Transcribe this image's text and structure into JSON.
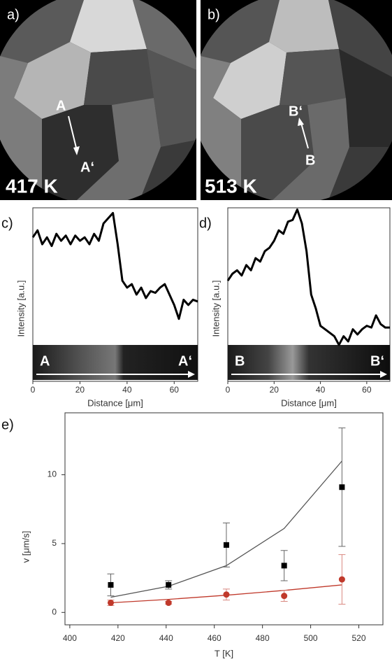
{
  "images": [
    {
      "label": "a)",
      "temperature": "417 K",
      "start": "A",
      "end": "A‘"
    },
    {
      "label": "b)",
      "temperature": "513 K",
      "start": "B",
      "end": "B‘"
    }
  ],
  "chart_data": [
    {
      "type": "profile",
      "label": "c)",
      "x_label": "Distance [μm]",
      "y_label": "Intensity [a.u.]",
      "strip_start": "A",
      "strip_end": "A‘",
      "color": "#000",
      "x": [
        0,
        2,
        4,
        6,
        8,
        10,
        12,
        14,
        16,
        18,
        20,
        22,
        24,
        26,
        28,
        30,
        32,
        34,
        36,
        38,
        40,
        42,
        44,
        46,
        48,
        50,
        52,
        54,
        56,
        58,
        60,
        62,
        64,
        66,
        68,
        70
      ],
      "values": [
        0.83,
        0.87,
        0.79,
        0.83,
        0.78,
        0.85,
        0.81,
        0.84,
        0.79,
        0.84,
        0.81,
        0.83,
        0.79,
        0.85,
        0.81,
        0.91,
        0.94,
        0.97,
        0.79,
        0.58,
        0.54,
        0.56,
        0.5,
        0.54,
        0.48,
        0.52,
        0.51,
        0.54,
        0.56,
        0.5,
        0.44,
        0.36,
        0.47,
        0.44,
        0.47,
        0.46
      ],
      "xlim": [
        0,
        70
      ],
      "ylim": [
        0,
        1
      ],
      "xticks": [
        0,
        20,
        40,
        60
      ]
    },
    {
      "type": "profile",
      "label": "d)",
      "x_label": "Distance [μm]",
      "y_label": "Intensity [a.u.]",
      "strip_start": "B",
      "strip_end": "B‘",
      "color": "#000",
      "x": [
        0,
        2,
        4,
        6,
        8,
        10,
        12,
        14,
        16,
        18,
        20,
        22,
        24,
        26,
        28,
        30,
        32,
        34,
        36,
        38,
        40,
        42,
        44,
        46,
        48,
        50,
        52,
        54,
        56,
        58,
        60,
        62,
        64,
        66,
        68,
        70
      ],
      "values": [
        0.58,
        0.62,
        0.64,
        0.61,
        0.67,
        0.64,
        0.71,
        0.69,
        0.75,
        0.77,
        0.81,
        0.87,
        0.85,
        0.92,
        0.93,
        0.99,
        0.91,
        0.75,
        0.5,
        0.42,
        0.32,
        0.3,
        0.28,
        0.26,
        0.21,
        0.26,
        0.23,
        0.3,
        0.27,
        0.3,
        0.32,
        0.31,
        0.38,
        0.33,
        0.31,
        0.31
      ],
      "xlim": [
        0,
        70
      ],
      "ylim": [
        0,
        1
      ],
      "xticks": [
        0,
        20,
        40,
        60
      ]
    },
    {
      "type": "scatter",
      "label": "e)",
      "x_label": "T [K]",
      "y_label": "v [μm/s]",
      "series": [
        {
          "kind": "line",
          "color": "#555",
          "x": [
            417,
            441,
            465,
            489,
            513
          ],
          "values": [
            1.1,
            1.9,
            3.4,
            6.1,
            11.0
          ]
        },
        {
          "kind": "line",
          "color": "#c0392b",
          "x": [
            417,
            441,
            465,
            489,
            513
          ],
          "values": [
            0.7,
            0.95,
            1.25,
            1.6,
            2.0
          ]
        },
        {
          "kind": "points",
          "marker": "square",
          "color": "#000",
          "error_color": "#666",
          "x": [
            417,
            441,
            465,
            489,
            513
          ],
          "values": [
            2.0,
            2.0,
            4.9,
            3.4,
            9.1
          ],
          "errors": [
            0.8,
            0.3,
            1.6,
            1.1,
            4.3
          ]
        },
        {
          "kind": "points",
          "marker": "circle",
          "color": "#c0392b",
          "error_color": "#d98880",
          "x": [
            417,
            441,
            465,
            489,
            513
          ],
          "values": [
            0.7,
            0.7,
            1.3,
            1.2,
            2.4
          ],
          "errors": [
            0.2,
            0.1,
            0.4,
            0.4,
            1.8
          ]
        }
      ],
      "xlim": [
        398,
        530
      ],
      "ylim": [
        -0.9,
        14.5
      ],
      "xticks": [
        400,
        420,
        440,
        460,
        480,
        500,
        520
      ],
      "yticks": [
        0,
        5,
        10
      ]
    }
  ]
}
